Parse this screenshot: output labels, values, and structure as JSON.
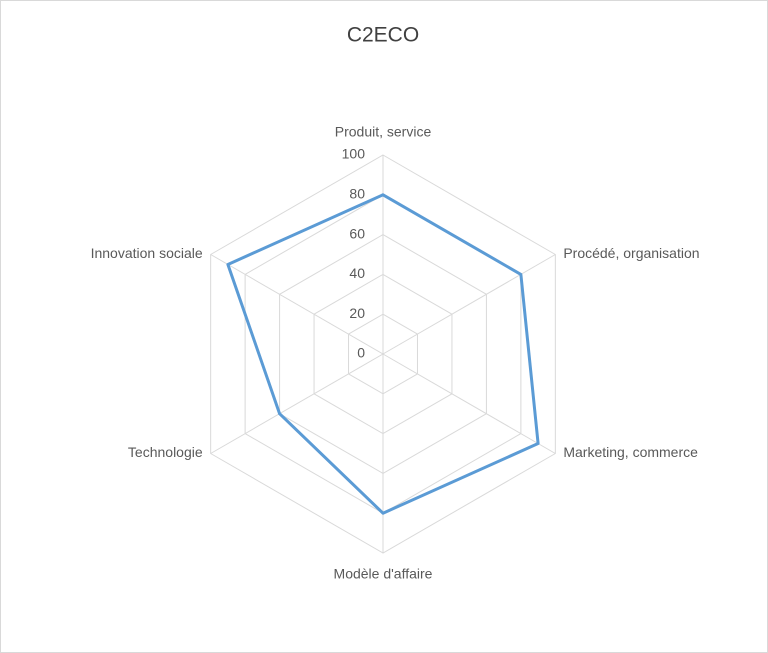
{
  "chart_data": {
    "type": "radar",
    "title": "C2ECO",
    "categories": [
      "Produit, service",
      "Procédé, organisation",
      "Marketing, commerce",
      "Modèle d'affaire",
      "Technologie",
      "Innovation sociale"
    ],
    "series": [
      {
        "color": "#5b9bd5",
        "values": [
          80,
          80,
          90,
          80,
          60,
          90
        ]
      }
    ],
    "ylim": [
      0,
      100
    ],
    "yticks": [
      0,
      20,
      40,
      60,
      80,
      100
    ],
    "grid": true
  }
}
